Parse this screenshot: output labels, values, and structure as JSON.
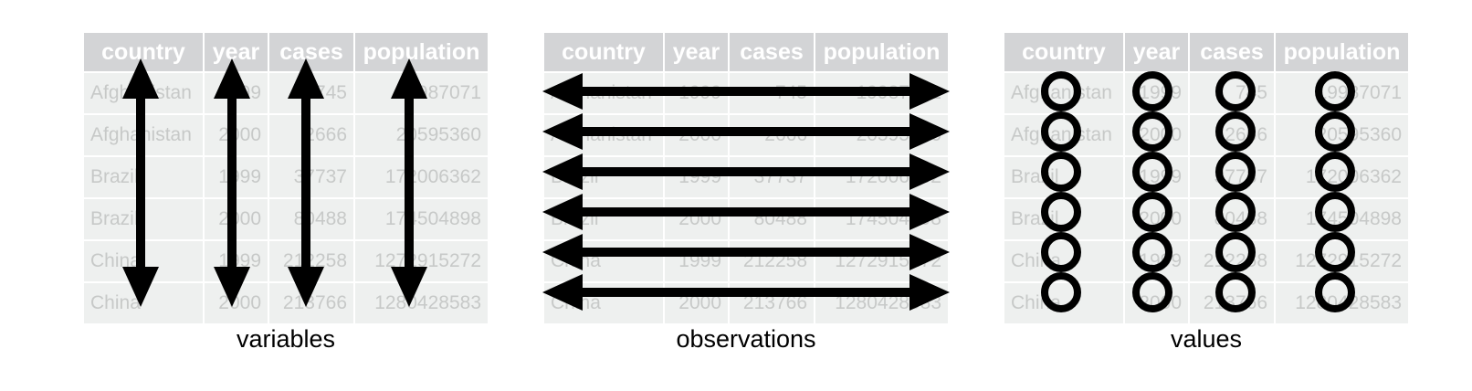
{
  "columns": [
    "country",
    "year",
    "cases",
    "population"
  ],
  "rows": [
    [
      "Afghanistan",
      "1999",
      "745",
      "19987071"
    ],
    [
      "Afghanistan",
      "2000",
      "2666",
      "20595360"
    ],
    [
      "Brazil",
      "1999",
      "37737",
      "172006362"
    ],
    [
      "Brazil",
      "2000",
      "80488",
      "174504898"
    ],
    [
      "China",
      "1999",
      "212258",
      "1272915272"
    ],
    [
      "China",
      "2000",
      "213766",
      "1280428583"
    ]
  ],
  "panels": [
    {
      "id": "variables",
      "caption": "variables",
      "marker": "vertical-double-arrow"
    },
    {
      "id": "observations",
      "caption": "observations",
      "marker": "horizontal-double-arrow"
    },
    {
      "id": "values",
      "caption": "values",
      "marker": "circle"
    }
  ],
  "colors": {
    "header_bg": "#d3d4d6",
    "header_text": "#ffffff",
    "cell_bg": "#eef0ef",
    "cell_text": "#c7c9c8",
    "marker": "#000000"
  }
}
